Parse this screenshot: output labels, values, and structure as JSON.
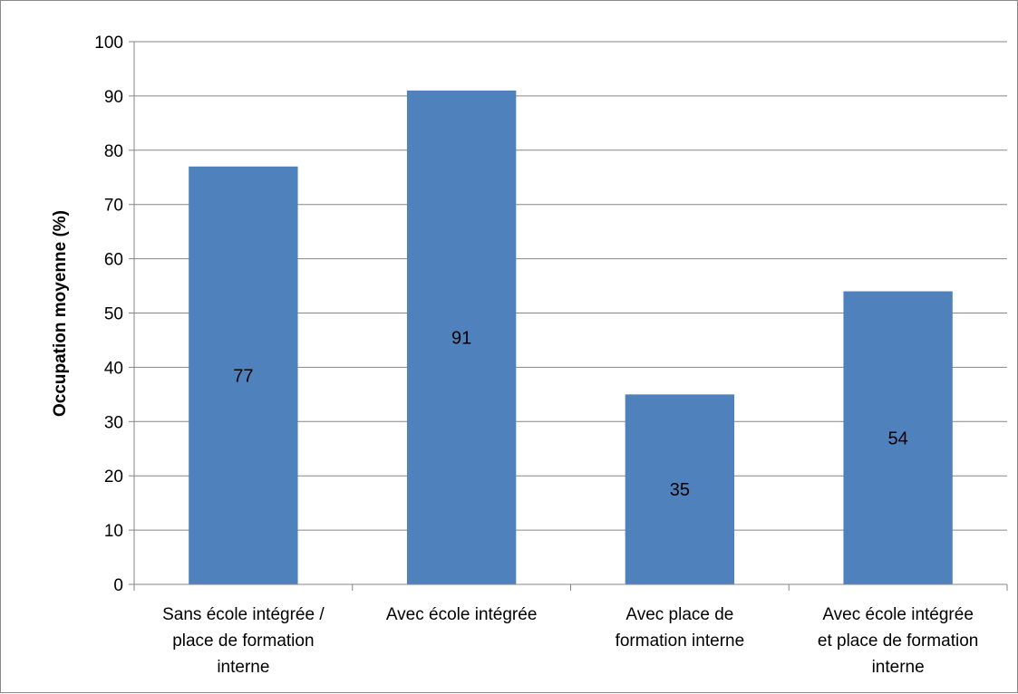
{
  "chart_data": {
    "type": "bar",
    "categories": [
      [
        "Sans école intégrée /",
        "place de formation",
        "interne"
      ],
      [
        "Avec école intégrée"
      ],
      [
        "Avec place de",
        "formation interne"
      ],
      [
        "Avec école intégrée",
        "et place de formation",
        "interne"
      ]
    ],
    "values": [
      77,
      91,
      35,
      54
    ],
    "data_labels": [
      "77",
      "91",
      "35",
      "54"
    ],
    "title": "",
    "xlabel": "",
    "ylabel": "Occupation moyenne (%)",
    "ylim": [
      0,
      100
    ],
    "yticks": [
      0,
      10,
      20,
      30,
      40,
      50,
      60,
      70,
      80,
      90,
      100
    ],
    "grid": "horizontal",
    "legend": "none",
    "bar_color": "#4F81BD",
    "grid_color": "#868686"
  }
}
